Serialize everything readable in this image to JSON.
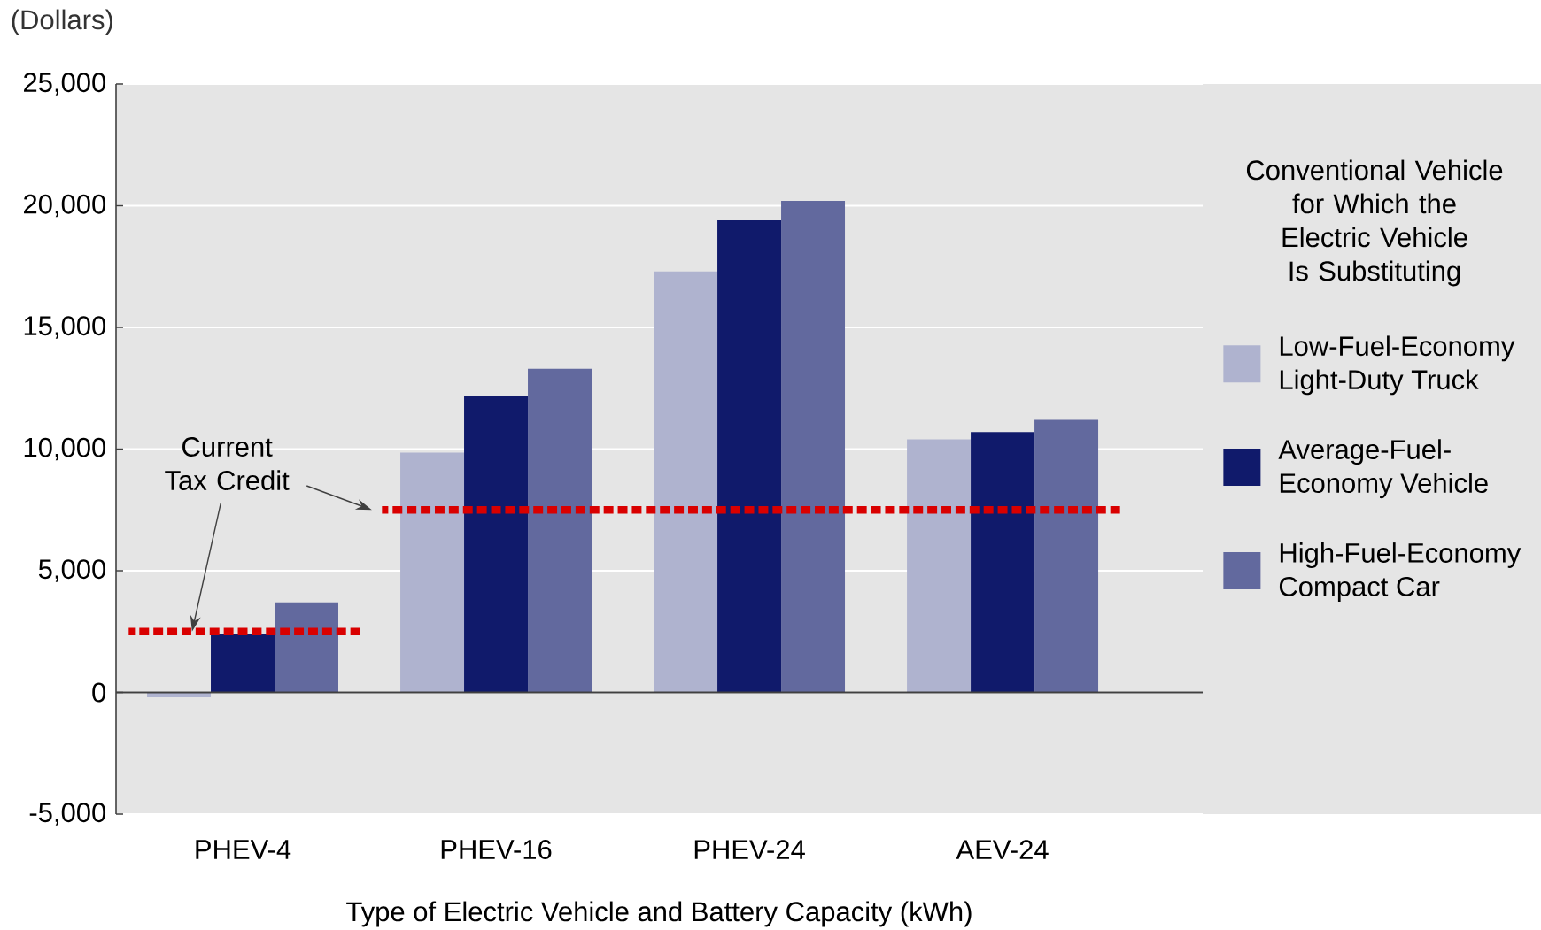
{
  "chart_data": {
    "type": "bar",
    "ylabel": "(Dollars)",
    "xlabel": "Type of Electric Vehicle and Battery Capacity (kWh)",
    "legend_title": "Conventional Vehicle for Which the Electric Vehicle Is Substituting",
    "categories": [
      "PHEV-4",
      "PHEV-16",
      "PHEV-24",
      "AEV-24"
    ],
    "series": [
      {
        "name": "Low-Fuel-Economy Light-Duty Truck",
        "color": "#afb3cf",
        "values": [
          -200,
          9850,
          17300,
          10400
        ]
      },
      {
        "name": "Average-Fuel-Economy Vehicle",
        "color": "#101a6b",
        "values": [
          2400,
          12200,
          19400,
          10700
        ]
      },
      {
        "name": "High-Fuel-Economy Compact Car",
        "color": "#62699e",
        "values": [
          3700,
          13300,
          20200,
          11200
        ]
      }
    ],
    "ref_lines": [
      {
        "axis": "y",
        "value": 2500,
        "color": "#d90000",
        "line_style": "dotted"
      },
      {
        "axis": "y",
        "value": 7500,
        "color": "#d90000",
        "line_style": "dotted"
      }
    ],
    "annotations": [
      "Current Tax Credit"
    ],
    "ylim": [
      -5000,
      25000
    ],
    "yticks": [
      {
        "value": -5000,
        "label": "-5,000"
      },
      0,
      {
        "value": 5000,
        "label": "5,000"
      },
      {
        "value": 10000,
        "label": "10,000"
      },
      {
        "value": 15000,
        "label": "15,000"
      },
      {
        "value": 20000,
        "label": "20,000"
      },
      {
        "value": 25000,
        "label": "25,000"
      }
    ],
    "grid": "y",
    "legend": "right"
  }
}
